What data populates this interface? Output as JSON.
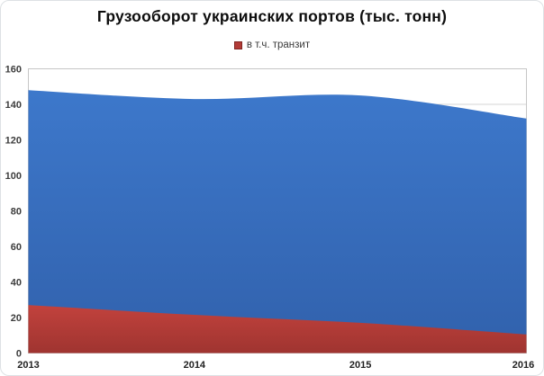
{
  "frame": {
    "background": "#FFFFFF",
    "border_color": "#DDE1E4"
  },
  "chart_data": {
    "type": "area",
    "title": "Грузооборот украинских портов (тыс. тонн)",
    "categories": [
      "2013",
      "2014",
      "2015",
      "2016"
    ],
    "series": [
      {
        "name": "",
        "values": [
          148,
          143,
          145,
          132
        ],
        "fill_top": "#3D78CB",
        "fill_bottom": "#3161AC",
        "smooth": true
      },
      {
        "name": "в т.ч. транзит",
        "values": [
          27,
          21.5,
          17,
          10.5
        ],
        "fill_top": "#C2423D",
        "fill_bottom": "#9F3430",
        "smooth": true
      }
    ],
    "legend": {
      "position": "top",
      "entries": [
        {
          "label": "в т.ч. транзит",
          "marker_color": "#B23B37"
        }
      ]
    },
    "xlabel": "",
    "ylabel": "",
    "ylim": [
      0,
      160
    ],
    "yticks": [
      0,
      20,
      40,
      60,
      80,
      100,
      120,
      140,
      160
    ],
    "grid": true,
    "grid_color": "#D4D4D4",
    "plot_border_color": "#C6C6C6",
    "title_color": "#0D0D0D"
  }
}
